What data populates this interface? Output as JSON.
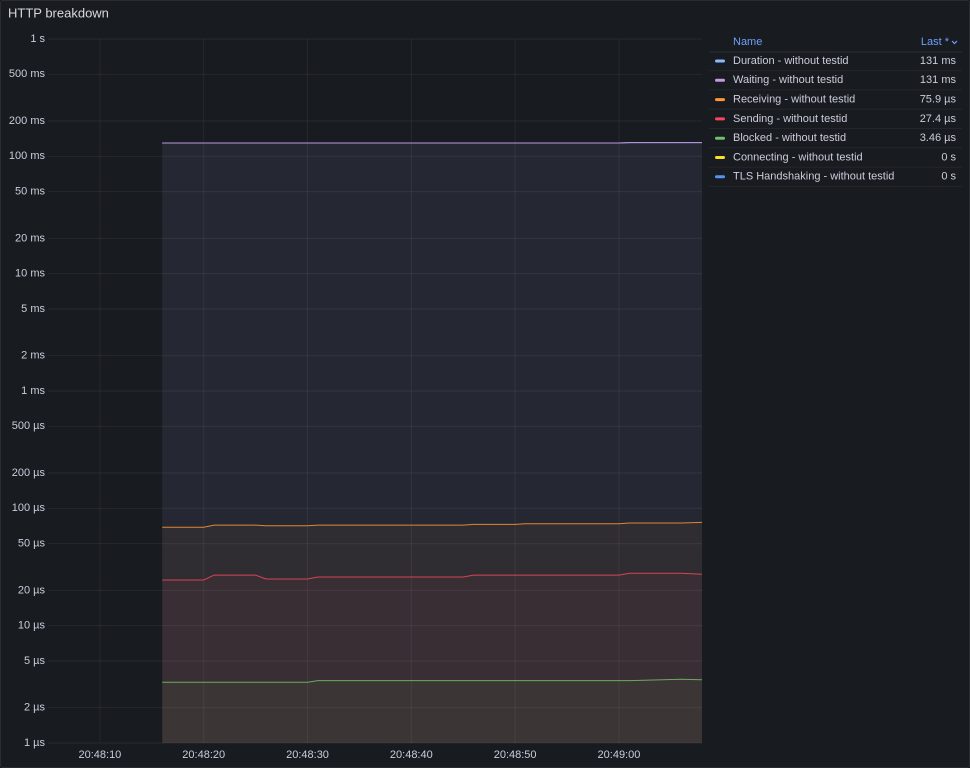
{
  "chart_data": {
    "type": "line",
    "title": "HTTP breakdown",
    "log_scale": true,
    "grid": true,
    "legend_position": "right",
    "legend_headers": {
      "name": "Name",
      "value": "Last *"
    },
    "x": [
      "20:48:16",
      "20:48:20",
      "20:48:21",
      "20:48:25",
      "20:48:26",
      "20:48:30",
      "20:48:31",
      "20:48:45",
      "20:48:46",
      "20:48:50",
      "20:48:51",
      "20:49:00",
      "20:49:01",
      "20:49:06",
      "20:49:08"
    ],
    "xlim": [
      "20:48:05",
      "20:49:08"
    ],
    "xticks": [
      "20:48:10",
      "20:48:20",
      "20:48:30",
      "20:48:40",
      "20:48:50",
      "20:49:00"
    ],
    "ylim": [
      1e-06,
      1
    ],
    "yticks": [
      {
        "value": 1,
        "label": "1 s"
      },
      {
        "value": 0.5,
        "label": "500 ms"
      },
      {
        "value": 0.2,
        "label": "200 ms"
      },
      {
        "value": 0.1,
        "label": "100 ms"
      },
      {
        "value": 0.05,
        "label": "50 ms"
      },
      {
        "value": 0.02,
        "label": "20 ms"
      },
      {
        "value": 0.01,
        "label": "10 ms"
      },
      {
        "value": 0.005,
        "label": "5 ms"
      },
      {
        "value": 0.002,
        "label": "2 ms"
      },
      {
        "value": 0.001,
        "label": "1 ms"
      },
      {
        "value": 0.0005,
        "label": "500 µs"
      },
      {
        "value": 0.0002,
        "label": "200 µs"
      },
      {
        "value": 0.0001,
        "label": "100 µs"
      },
      {
        "value": 5e-05,
        "label": "50 µs"
      },
      {
        "value": 2e-05,
        "label": "20 µs"
      },
      {
        "value": 1e-05,
        "label": "10 µs"
      },
      {
        "value": 5e-06,
        "label": "5 µs"
      },
      {
        "value": 2e-06,
        "label": "2 µs"
      },
      {
        "value": 1e-06,
        "label": "1 µs"
      }
    ],
    "series": [
      {
        "name": "Duration - without testid",
        "color": "#8ab8ff",
        "legend_last": "131 ms",
        "values": [
          0.13,
          0.13,
          0.13,
          0.13,
          0.13,
          0.13,
          0.13,
          0.13,
          0.13,
          0.13,
          0.13,
          0.13,
          0.131,
          0.131,
          0.131
        ]
      },
      {
        "name": "Waiting - without testid",
        "color": "#ca95e5",
        "legend_last": "131 ms",
        "values": [
          0.13,
          0.13,
          0.13,
          0.13,
          0.13,
          0.13,
          0.13,
          0.13,
          0.13,
          0.13,
          0.13,
          0.13,
          0.131,
          0.131,
          0.131
        ]
      },
      {
        "name": "Receiving - without testid",
        "color": "#ff9830",
        "legend_last": "75.9 µs",
        "values": [
          6.9e-05,
          6.9e-05,
          7.2e-05,
          7.2e-05,
          7.1e-05,
          7.1e-05,
          7.2e-05,
          7.2e-05,
          7.3e-05,
          7.3e-05,
          7.4e-05,
          7.4e-05,
          7.5e-05,
          7.5e-05,
          7.59e-05
        ]
      },
      {
        "name": "Sending - without testid",
        "color": "#f2495c",
        "legend_last": "27.4 µs",
        "values": [
          2.45e-05,
          2.45e-05,
          2.7e-05,
          2.7e-05,
          2.5e-05,
          2.5e-05,
          2.6e-05,
          2.6e-05,
          2.7e-05,
          2.7e-05,
          2.7e-05,
          2.7e-05,
          2.8e-05,
          2.8e-05,
          2.74e-05
        ]
      },
      {
        "name": "Blocked - without testid",
        "color": "#73bf69",
        "legend_last": "3.46 µs",
        "values": [
          3.3e-06,
          3.3e-06,
          3.3e-06,
          3.3e-06,
          3.3e-06,
          3.3e-06,
          3.4e-06,
          3.4e-06,
          3.4e-06,
          3.4e-06,
          3.4e-06,
          3.4e-06,
          3.4e-06,
          3.5e-06,
          3.46e-06
        ]
      },
      {
        "name": "Connecting - without testid",
        "color": "#fade2a",
        "legend_last": "0 s",
        "values": [
          0,
          0,
          0,
          0,
          0,
          0,
          0,
          0,
          0,
          0,
          0,
          0,
          0,
          0,
          0
        ]
      },
      {
        "name": "TLS Handshaking - without testid",
        "color": "#5794f2",
        "legend_last": "0 s",
        "values": [
          0,
          0,
          0,
          0,
          0,
          0,
          0,
          0,
          0,
          0,
          0,
          0,
          0,
          0,
          0
        ]
      }
    ]
  }
}
